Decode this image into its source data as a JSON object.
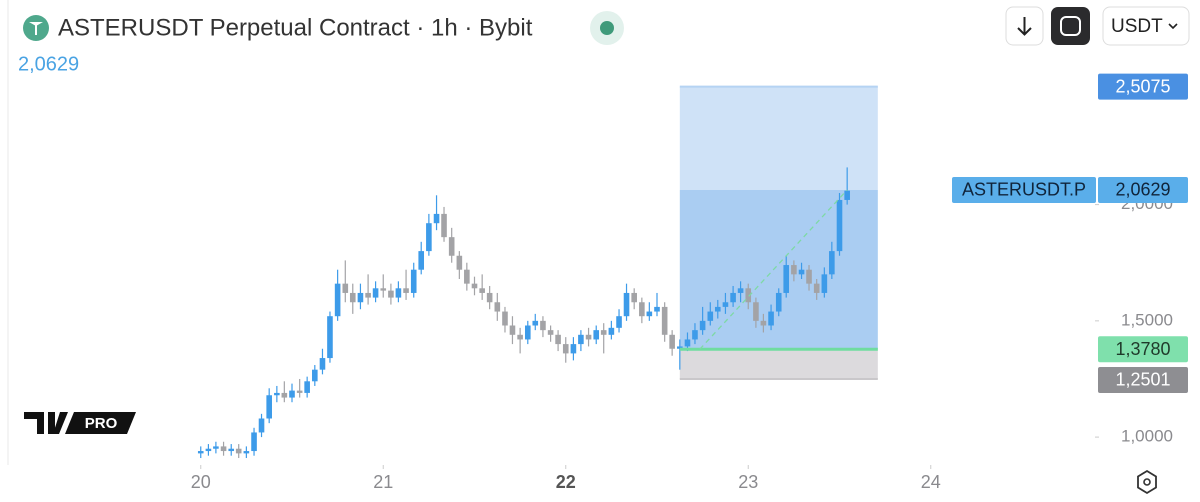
{
  "header": {
    "title": "ASTERUSDT Perpetual Contract · 1h · Bybit",
    "currency": "USDT",
    "logo": "PRO"
  },
  "chart_data": {
    "type": "candlestick",
    "x": [
      20,
      20.042,
      20.083,
      20.125,
      20.167,
      20.208,
      20.25,
      20.292,
      20.333,
      20.375,
      20.417,
      20.458,
      20.5,
      20.542,
      20.583,
      20.625,
      20.667,
      20.708,
      20.75,
      20.792,
      20.833,
      20.875,
      20.917,
      20.958,
      21,
      21.042,
      21.083,
      21.125,
      21.167,
      21.208,
      21.25,
      21.292,
      21.333,
      21.375,
      21.417,
      21.458,
      21.5,
      21.542,
      21.583,
      21.625,
      21.667,
      21.708,
      21.75,
      21.792,
      21.833,
      21.875,
      21.917,
      21.958,
      22,
      22.042,
      22.083,
      22.125,
      22.167,
      22.208,
      22.25,
      22.292,
      22.333,
      22.375,
      22.417,
      22.458,
      22.5,
      22.542,
      22.583,
      22.625,
      22.667,
      22.708,
      22.75,
      22.792,
      22.833,
      22.875,
      22.917,
      22.958,
      23,
      23.042,
      23.083,
      23.125,
      23.167,
      23.208,
      23.25,
      23.292,
      23.333,
      23.375,
      23.417,
      23.458,
      23.5,
      23.542
    ],
    "open": [
      0.93,
      0.94,
      0.95,
      0.96,
      0.94,
      0.95,
      0.93,
      0.94,
      1.02,
      1.08,
      1.18,
      1.19,
      1.17,
      1.2,
      1.19,
      1.24,
      1.29,
      1.34,
      1.52,
      1.66,
      1.62,
      1.58,
      1.62,
      1.6,
      1.64,
      1.63,
      1.6,
      1.64,
      1.62,
      1.72,
      1.8,
      1.92,
      1.96,
      1.86,
      1.78,
      1.72,
      1.66,
      1.64,
      1.62,
      1.58,
      1.54,
      1.48,
      1.44,
      1.42,
      1.48,
      1.5,
      1.46,
      1.44,
      1.4,
      1.36,
      1.4,
      1.44,
      1.42,
      1.46,
      1.44,
      1.47,
      1.52,
      1.62,
      1.58,
      1.52,
      1.54,
      1.56,
      1.44,
      1.38,
      1.39,
      1.42,
      1.46,
      1.5,
      1.54,
      1.56,
      1.58,
      1.62,
      1.64,
      1.58,
      1.5,
      1.48,
      1.54,
      1.62,
      1.74,
      1.7,
      1.72,
      1.66,
      1.62,
      1.7,
      1.8,
      2.02
    ],
    "high": [
      0.96,
      0.97,
      0.98,
      0.98,
      0.97,
      0.97,
      0.96,
      1.04,
      1.1,
      1.21,
      1.22,
      1.24,
      1.23,
      1.25,
      1.26,
      1.31,
      1.38,
      1.54,
      1.72,
      1.76,
      1.66,
      1.66,
      1.7,
      1.67,
      1.7,
      1.66,
      1.67,
      1.72,
      1.75,
      1.84,
      1.96,
      2.04,
      1.99,
      1.9,
      1.8,
      1.75,
      1.69,
      1.7,
      1.65,
      1.62,
      1.56,
      1.52,
      1.47,
      1.5,
      1.53,
      1.52,
      1.48,
      1.46,
      1.43,
      1.43,
      1.46,
      1.47,
      1.48,
      1.49,
      1.5,
      1.55,
      1.66,
      1.64,
      1.6,
      1.58,
      1.62,
      1.58,
      1.46,
      1.42,
      1.45,
      1.49,
      1.56,
      1.58,
      1.59,
      1.62,
      1.65,
      1.67,
      1.66,
      1.6,
      1.53,
      1.57,
      1.64,
      1.78,
      1.76,
      1.75,
      1.74,
      1.68,
      1.73,
      1.84,
      2.05,
      2.16
    ],
    "low": [
      0.91,
      0.92,
      0.93,
      0.92,
      0.92,
      0.91,
      0.91,
      0.92,
      1.0,
      1.06,
      1.15,
      1.15,
      1.15,
      1.17,
      1.17,
      1.22,
      1.27,
      1.32,
      1.5,
      1.58,
      1.53,
      1.55,
      1.57,
      1.58,
      1.6,
      1.57,
      1.58,
      1.59,
      1.6,
      1.7,
      1.78,
      1.89,
      1.84,
      1.75,
      1.68,
      1.63,
      1.61,
      1.59,
      1.55,
      1.5,
      1.45,
      1.4,
      1.36,
      1.4,
      1.46,
      1.43,
      1.41,
      1.37,
      1.32,
      1.33,
      1.37,
      1.39,
      1.4,
      1.36,
      1.42,
      1.45,
      1.5,
      1.55,
      1.49,
      1.5,
      1.52,
      1.41,
      1.35,
      1.29,
      1.37,
      1.4,
      1.44,
      1.48,
      1.51,
      1.53,
      1.56,
      1.58,
      1.55,
      1.47,
      1.45,
      1.46,
      1.52,
      1.6,
      1.67,
      1.68,
      1.63,
      1.59,
      1.6,
      1.68,
      1.78,
      2.0
    ],
    "close": [
      0.94,
      0.95,
      0.96,
      0.94,
      0.95,
      0.93,
      0.94,
      1.02,
      1.08,
      1.18,
      1.19,
      1.17,
      1.2,
      1.19,
      1.24,
      1.29,
      1.34,
      1.52,
      1.66,
      1.62,
      1.58,
      1.62,
      1.6,
      1.64,
      1.63,
      1.6,
      1.64,
      1.62,
      1.72,
      1.8,
      1.92,
      1.96,
      1.86,
      1.78,
      1.72,
      1.66,
      1.64,
      1.62,
      1.58,
      1.54,
      1.48,
      1.44,
      1.42,
      1.48,
      1.5,
      1.46,
      1.44,
      1.4,
      1.36,
      1.4,
      1.44,
      1.42,
      1.46,
      1.44,
      1.47,
      1.52,
      1.62,
      1.58,
      1.52,
      1.54,
      1.56,
      1.44,
      1.38,
      1.39,
      1.42,
      1.46,
      1.5,
      1.54,
      1.56,
      1.58,
      1.62,
      1.64,
      1.58,
      1.5,
      1.48,
      1.54,
      1.62,
      1.74,
      1.7,
      1.72,
      1.66,
      1.62,
      1.7,
      1.8,
      2.02,
      2.06
    ],
    "up_color": "#3d9be9",
    "down_color": "#a3a3a6",
    "xlim": [
      18.9,
      24.9
    ],
    "xticks": [
      20,
      21,
      22,
      23,
      24
    ],
    "bold_xtick": 22,
    "ylim": [
      0.88,
      2.88
    ],
    "yticks": [
      {
        "value": 1,
        "label": "1,0000"
      },
      {
        "value": 1.5,
        "label": "1,5000"
      },
      {
        "value": 2,
        "label": "2,0000"
      }
    ],
    "last_price": {
      "name": "ASTERUSDT.P",
      "value": 2.0629,
      "label": "2,0629",
      "color": "#5aaeea"
    },
    "position": {
      "values": [
        2.5075,
        1.378,
        1.2501
      ],
      "value_labels": [
        "2,5075",
        "1,3780",
        "1,2501"
      ],
      "colors": [
        "#4a90e2",
        "#7fe0ac",
        "#8e8e92"
      ],
      "start": 22.625,
      "end": 23.71
    }
  }
}
